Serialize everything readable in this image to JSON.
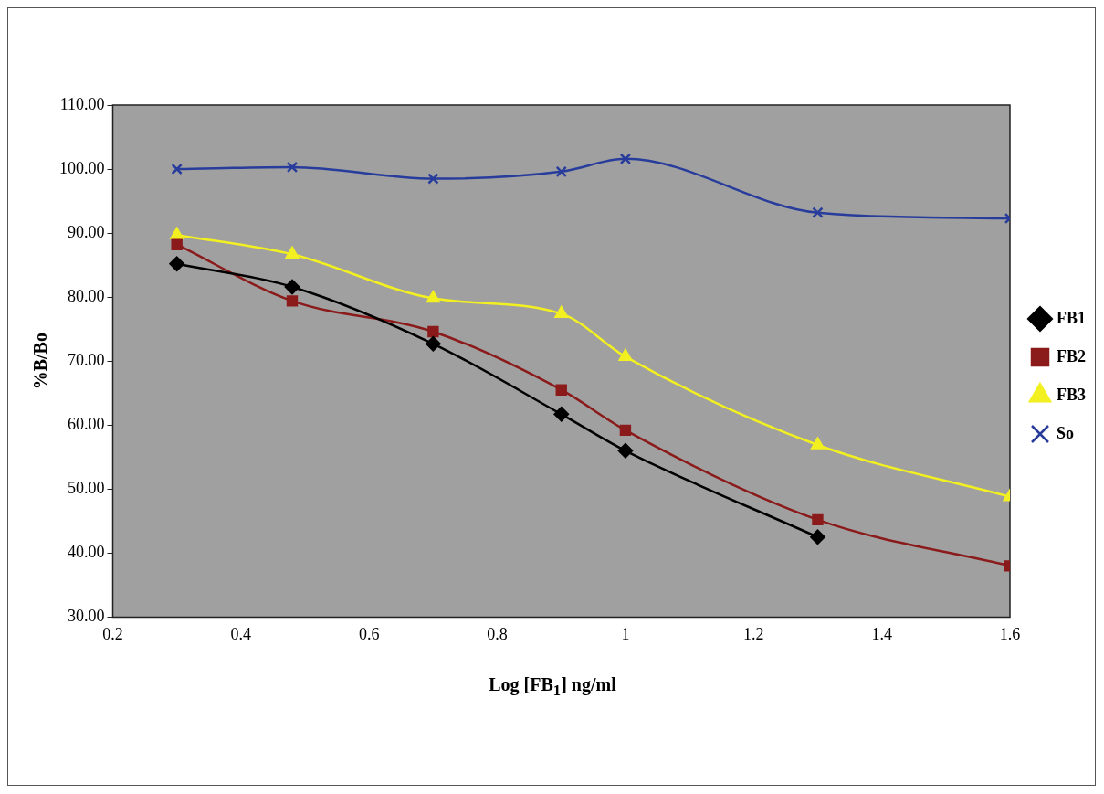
{
  "chart_data": {
    "type": "line",
    "xlabel": "Log [FB$_{1}$] ng/ml",
    "ylabel": "%B/Bo",
    "x": [
      0.3,
      0.48,
      0.7,
      0.9,
      1,
      1.3,
      1.6
    ],
    "series": [
      {
        "name": "FB1",
        "color": "#000000",
        "marker": "diamond",
        "values": [
          85.2,
          81.6,
          72.7,
          61.7,
          56.0,
          42.5,
          null
        ]
      },
      {
        "name": "FB2",
        "color": "#8b1a1a",
        "marker": "square",
        "values": [
          88.2,
          79.4,
          74.6,
          65.5,
          59.2,
          45.2,
          38.0
        ]
      },
      {
        "name": "FB3",
        "color": "#f2f020",
        "marker": "triangle",
        "values": [
          89.7,
          86.7,
          79.8,
          77.4,
          70.7,
          56.9,
          48.8
        ]
      },
      {
        "name": "So",
        "color": "#283c9c",
        "marker": "cross",
        "values": [
          100.0,
          100.3,
          98.5,
          99.6,
          101.6,
          93.2,
          92.3
        ]
      }
    ],
    "xlim": [
      0.2,
      1.6
    ],
    "xticks": [
      0.2,
      0.4,
      0.6,
      0.8,
      1,
      1.2,
      1.4,
      1.6
    ],
    "ylim": [
      30,
      110
    ],
    "yticks": [
      {
        "value": 30,
        "label": "30.00"
      },
      {
        "value": 40,
        "label": "40.00"
      },
      {
        "value": 50,
        "label": "50.00"
      },
      {
        "value": 60,
        "label": "60.00"
      },
      {
        "value": 70,
        "label": "70.00"
      },
      {
        "value": 80,
        "label": "80.00"
      },
      {
        "value": 90,
        "label": "90.00"
      },
      {
        "value": 100,
        "label": "100.00"
      },
      {
        "value": 110,
        "label": "110.00"
      }
    ],
    "grid": false,
    "legend": "right"
  }
}
